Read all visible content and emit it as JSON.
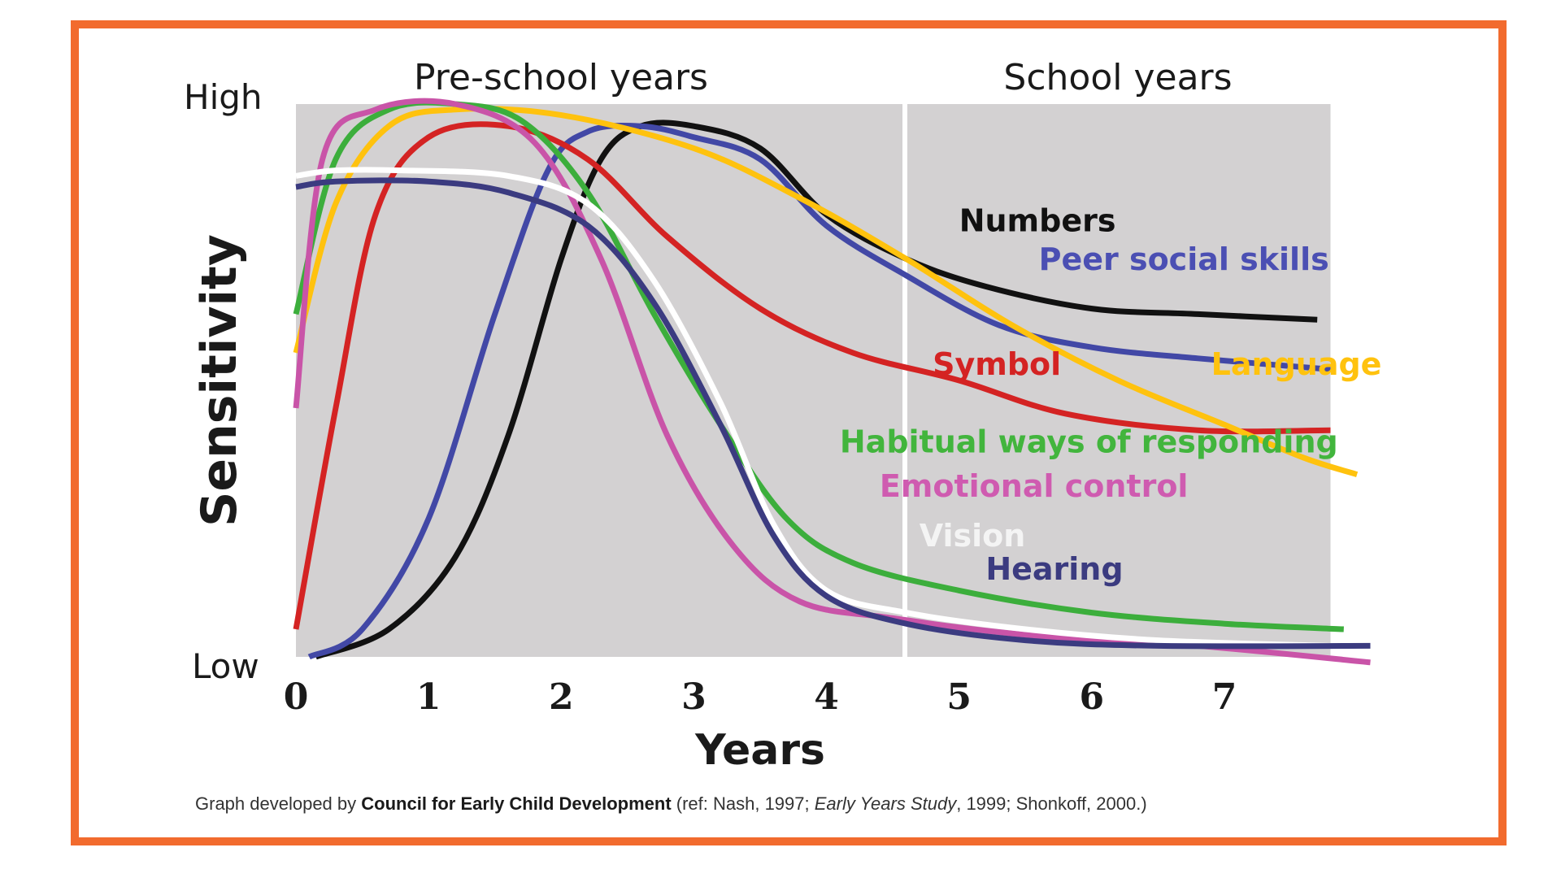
{
  "chart_data": {
    "type": "line",
    "xlabel": "Years",
    "ylabel": "Sensitivity",
    "y_low_label": "Low",
    "y_high_label": "High",
    "xlim": [
      0,
      8.4
    ],
    "ylim": [
      0,
      1
    ],
    "x_ticks": [
      0,
      1,
      2,
      3,
      4,
      5,
      6,
      7
    ],
    "periods": [
      {
        "label": "Pre-school years",
        "x_range": [
          0,
          4.6
        ],
        "fill": "#d3d1d2"
      },
      {
        "label": "School years",
        "x_range": [
          4.6,
          7.8
        ],
        "fill": "#d3d1d2"
      }
    ],
    "grid": false,
    "series": [
      {
        "name": "Numbers",
        "color": "#111111",
        "label_color": "#111111",
        "points": [
          [
            0.15,
            0
          ],
          [
            0.7,
            0.05
          ],
          [
            1.2,
            0.18
          ],
          [
            1.6,
            0.4
          ],
          [
            2.0,
            0.72
          ],
          [
            2.3,
            0.9
          ],
          [
            2.6,
            0.96
          ],
          [
            3.0,
            0.96
          ],
          [
            3.5,
            0.92
          ],
          [
            4.0,
            0.8
          ],
          [
            4.6,
            0.72
          ],
          [
            5.2,
            0.67
          ],
          [
            6.0,
            0.63
          ],
          [
            6.8,
            0.62
          ],
          [
            7.7,
            0.61
          ]
        ]
      },
      {
        "name": "Peer social skills",
        "color": "#4248a6",
        "label_color": "#4b4fb3",
        "points": [
          [
            0.1,
            0
          ],
          [
            0.5,
            0.05
          ],
          [
            1.0,
            0.25
          ],
          [
            1.5,
            0.62
          ],
          [
            1.9,
            0.88
          ],
          [
            2.2,
            0.95
          ],
          [
            2.6,
            0.96
          ],
          [
            3.0,
            0.94
          ],
          [
            3.5,
            0.9
          ],
          [
            4.0,
            0.78
          ],
          [
            4.6,
            0.69
          ],
          [
            5.3,
            0.6
          ],
          [
            6.0,
            0.56
          ],
          [
            6.8,
            0.54
          ],
          [
            7.8,
            0.52
          ]
        ]
      },
      {
        "name": "Symbol",
        "color": "#d42323",
        "label_color": "#d42323",
        "points": [
          [
            0,
            0.05
          ],
          [
            0.3,
            0.45
          ],
          [
            0.6,
            0.8
          ],
          [
            1.0,
            0.94
          ],
          [
            1.6,
            0.96
          ],
          [
            2.2,
            0.9
          ],
          [
            2.8,
            0.76
          ],
          [
            3.5,
            0.63
          ],
          [
            4.2,
            0.55
          ],
          [
            5.0,
            0.5
          ],
          [
            5.8,
            0.44
          ],
          [
            6.8,
            0.41
          ],
          [
            7.8,
            0.41
          ]
        ]
      },
      {
        "name": "Language",
        "color": "#ffc20e",
        "label_color": "#ffc20e",
        "points": [
          [
            0,
            0.55
          ],
          [
            0.3,
            0.82
          ],
          [
            0.7,
            0.96
          ],
          [
            1.2,
            0.99
          ],
          [
            2.0,
            0.98
          ],
          [
            3.0,
            0.92
          ],
          [
            3.8,
            0.83
          ],
          [
            4.6,
            0.72
          ],
          [
            5.4,
            0.6
          ],
          [
            6.2,
            0.5
          ],
          [
            7.0,
            0.42
          ],
          [
            7.6,
            0.36
          ],
          [
            8.0,
            0.33
          ]
        ]
      },
      {
        "name": "Habitual ways of responding",
        "color": "#3cae3c",
        "label_color": "#42b53d",
        "points": [
          [
            0,
            0.62
          ],
          [
            0.3,
            0.9
          ],
          [
            0.7,
            0.99
          ],
          [
            1.2,
            1.0
          ],
          [
            1.7,
            0.97
          ],
          [
            2.2,
            0.84
          ],
          [
            2.7,
            0.62
          ],
          [
            3.2,
            0.42
          ],
          [
            3.7,
            0.25
          ],
          [
            4.2,
            0.17
          ],
          [
            5.0,
            0.12
          ],
          [
            6.0,
            0.08
          ],
          [
            7.0,
            0.06
          ],
          [
            7.9,
            0.05
          ]
        ]
      },
      {
        "name": "Emotional control",
        "color": "#c954a8",
        "label_color": "#cf5bb0",
        "points": [
          [
            0,
            0.45
          ],
          [
            0.2,
            0.9
          ],
          [
            0.6,
            0.99
          ],
          [
            1.2,
            1.0
          ],
          [
            1.8,
            0.93
          ],
          [
            2.3,
            0.72
          ],
          [
            2.8,
            0.4
          ],
          [
            3.3,
            0.2
          ],
          [
            3.8,
            0.1
          ],
          [
            4.5,
            0.07
          ],
          [
            5.5,
            0.04
          ],
          [
            6.8,
            0.02
          ],
          [
            8.1,
            -0.01
          ]
        ]
      },
      {
        "name": "Vision",
        "color": "#ffffff",
        "label_color": "#f4f4f4",
        "points": [
          [
            0,
            0.87
          ],
          [
            0.3,
            0.88
          ],
          [
            0.8,
            0.88
          ],
          [
            1.6,
            0.87
          ],
          [
            2.2,
            0.82
          ],
          [
            2.7,
            0.68
          ],
          [
            3.2,
            0.46
          ],
          [
            3.6,
            0.24
          ],
          [
            4.0,
            0.12
          ],
          [
            4.6,
            0.08
          ],
          [
            5.5,
            0.05
          ],
          [
            6.5,
            0.03
          ],
          [
            7.8,
            0.02
          ]
        ]
      },
      {
        "name": "Hearing",
        "color": "#3b3b80",
        "label_color": "#3b3b80",
        "points": [
          [
            0,
            0.85
          ],
          [
            0.3,
            0.86
          ],
          [
            1.0,
            0.86
          ],
          [
            1.6,
            0.84
          ],
          [
            2.2,
            0.78
          ],
          [
            2.7,
            0.64
          ],
          [
            3.2,
            0.42
          ],
          [
            3.6,
            0.22
          ],
          [
            4.0,
            0.11
          ],
          [
            4.6,
            0.06
          ],
          [
            5.5,
            0.03
          ],
          [
            6.5,
            0.02
          ],
          [
            8.1,
            0.02
          ]
        ]
      }
    ],
    "series_labels": [
      {
        "name": "Numbers",
        "x": 5.0,
        "y": 0.77
      },
      {
        "name": "Peer social skills",
        "x": 5.6,
        "y": 0.7
      },
      {
        "name": "Symbol",
        "x": 4.8,
        "y": 0.51
      },
      {
        "name": "Language",
        "x": 6.9,
        "y": 0.51
      },
      {
        "name": "Habitual ways of responding",
        "x": 4.1,
        "y": 0.37
      },
      {
        "name": "Emotional control",
        "x": 4.4,
        "y": 0.29
      },
      {
        "name": "Vision",
        "x": 4.7,
        "y": 0.2
      },
      {
        "name": "Hearing",
        "x": 5.2,
        "y": 0.14
      }
    ]
  },
  "caption": {
    "prefix": "Graph developed  by ",
    "org": "Council for Early Child Development",
    "ref_open": "  (ref: Nash, 1997; ",
    "study": "Early Years Study",
    "ref_close": ", 1999; Shonkoff, 2000.)"
  }
}
